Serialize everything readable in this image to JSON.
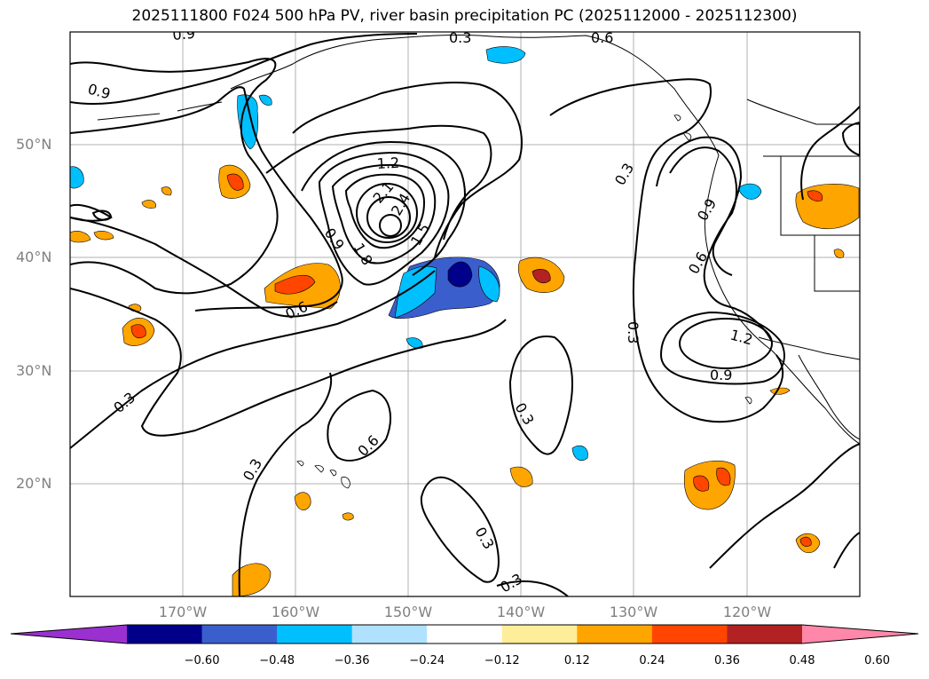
{
  "title": "2025111800 F024 500 hPa PV, river basin precipitation PC (2025112000 - 2025112300)",
  "lat_labels": [
    "50°N",
    "40°N",
    "30°N",
    "20°N"
  ],
  "lon_labels": [
    "170°W",
    "160°W",
    "150°W",
    "140°W",
    "130°W",
    "120°W"
  ],
  "contour_labels": [
    "0.9",
    "0.3",
    "0.6",
    "0.9",
    "1.2",
    "2.1",
    "2.4",
    "0.9",
    "1.8",
    "1.5",
    "0.6",
    "0.3",
    "0.3",
    "0.9",
    "0.6",
    "1.2",
    "0.9",
    "0.3",
    "0.3",
    "0.6",
    "0.3",
    "0.3",
    "0.3"
  ],
  "colorbar": {
    "ticks": [
      "−0.60",
      "−0.48",
      "−0.36",
      "−0.24",
      "−0.12",
      "0.12",
      "0.24",
      "0.36",
      "0.48",
      "0.60"
    ],
    "colors": [
      "#9b30d0",
      "#00008b",
      "#3a5fcd",
      "#00bfff",
      "#b0e2ff",
      "#ffffff",
      "#ffee99",
      "#ffa500",
      "#ff4500",
      "#b22222",
      "#ff88aa"
    ]
  }
}
